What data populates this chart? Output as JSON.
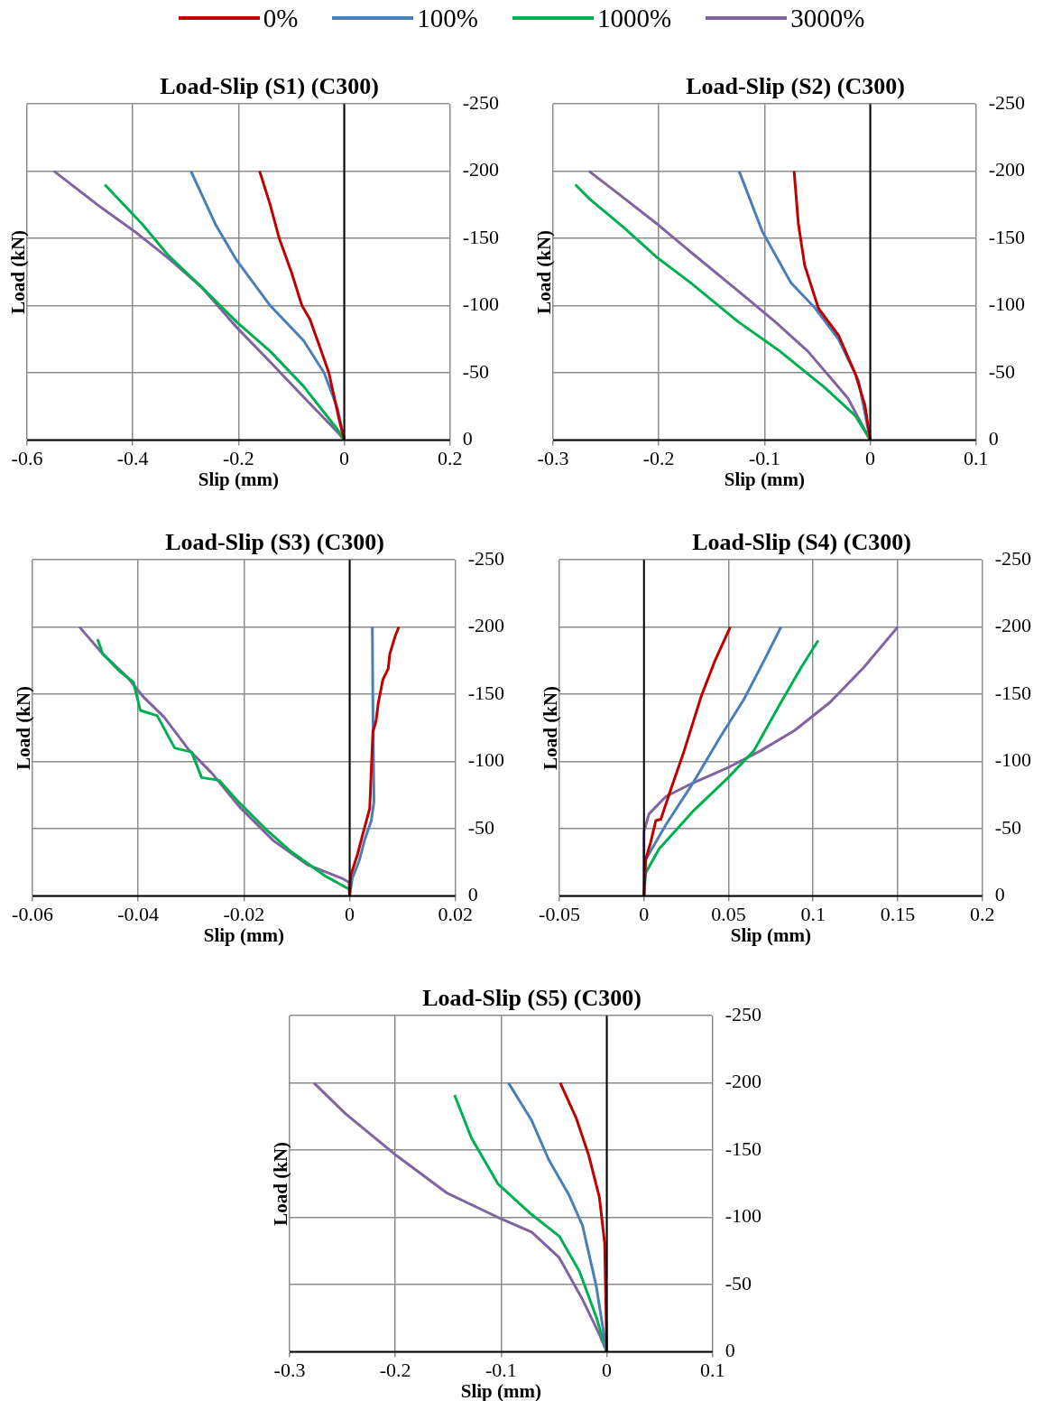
{
  "chart_data": [
    {
      "type": "line",
      "title": "Load-Slip (S1) (C300)",
      "xlabel": "Slip (mm)",
      "ylabel": "Load (kN)",
      "xlim": [
        -0.6,
        0.2
      ],
      "xticks": [
        -0.6,
        -0.4,
        -0.2,
        0,
        0.2
      ],
      "ylim": [
        0,
        -250
      ],
      "yticks": [
        0,
        -50,
        -100,
        -150,
        -200,
        -250
      ],
      "grid": true,
      "legend": "top",
      "marker": "none",
      "series": [
        {
          "name": "0%",
          "color": "#c00000",
          "x": [
            0,
            -0.01,
            -0.029,
            -0.045,
            -0.065,
            -0.08,
            -0.1,
            -0.123,
            -0.14,
            -0.16
          ],
          "values": [
            0,
            -16,
            -50,
            -68,
            -90,
            -100,
            -125,
            -150,
            -175,
            -200
          ]
        },
        {
          "name": "100%",
          "color": "#4a7ebb",
          "x": [
            0,
            -0.013,
            -0.038,
            -0.077,
            -0.14,
            -0.204,
            -0.243,
            -0.29
          ],
          "values": [
            0,
            -24,
            -50,
            -74,
            -100,
            -134,
            -160,
            -200
          ]
        },
        {
          "name": "1000%",
          "color": "#00b050",
          "x": [
            0,
            -0.013,
            -0.077,
            -0.14,
            -0.204,
            -0.268,
            -0.332,
            -0.383,
            -0.453
          ],
          "values": [
            0,
            -8,
            -40,
            -66,
            -88,
            -113,
            -137,
            -161,
            -190
          ]
        },
        {
          "name": "3000%",
          "color": "#8064a2",
          "x": [
            0,
            -0.013,
            -0.077,
            -0.14,
            -0.204,
            -0.268,
            -0.332,
            -0.396,
            -0.46,
            -0.549
          ],
          "values": [
            0,
            -6,
            -32,
            -58,
            -84,
            -113,
            -135,
            -155,
            -173,
            -200
          ]
        }
      ]
    },
    {
      "type": "line",
      "title": "Load-Slip (S2) (C300)",
      "xlabel": "Slip (mm)",
      "ylabel": "Load (kN)",
      "xlim": [
        -0.3,
        0.1
      ],
      "xticks": [
        -0.3,
        -0.2,
        -0.1,
        0,
        0.1
      ],
      "ylim": [
        0,
        -250
      ],
      "yticks": [
        0,
        -50,
        -100,
        -150,
        -200,
        -250
      ],
      "grid": true,
      "marker": "none",
      "series": [
        {
          "color": "#c00000",
          "x": [
            0,
            -0.005,
            -0.014,
            -0.03,
            -0.049,
            -0.062,
            -0.068,
            -0.072
          ],
          "values": [
            0,
            -26,
            -49,
            -78,
            -98,
            -130,
            -161,
            -200
          ]
        },
        {
          "color": "#4a7ebb",
          "x": [
            0,
            -0.011,
            -0.03,
            -0.052,
            -0.075,
            -0.102,
            -0.124
          ],
          "values": [
            0,
            -44,
            -75,
            -98,
            -117,
            -155,
            -200
          ]
        },
        {
          "color": "#00b050",
          "x": [
            0,
            -0.014,
            -0.043,
            -0.087,
            -0.125,
            -0.17,
            -0.202,
            -0.233,
            -0.265,
            -0.279
          ],
          "values": [
            0,
            -18,
            -39,
            -67,
            -88,
            -117,
            -136,
            -158,
            -179,
            -190
          ]
        },
        {
          "color": "#8064a2",
          "x": [
            0,
            -0.011,
            -0.021,
            -0.059,
            -0.09,
            -0.122,
            -0.17,
            -0.202,
            -0.233,
            -0.266
          ],
          "values": [
            0,
            -16,
            -31,
            -66,
            -88,
            -109,
            -140,
            -161,
            -180,
            -200
          ]
        }
      ]
    },
    {
      "type": "line",
      "title": "Load-Slip (S3) (C300)",
      "xlabel": "Slip (mm)",
      "ylabel": "Load (kN)",
      "xlim": [
        -0.06,
        0.02
      ],
      "xticks": [
        -0.06,
        -0.04,
        -0.02,
        0,
        0.02
      ],
      "ylim": [
        0,
        -250
      ],
      "yticks": [
        0,
        -50,
        -100,
        -150,
        -200,
        -250
      ],
      "grid": true,
      "marker": "none",
      "series": [
        {
          "color": "#c00000",
          "x": [
            0,
            0.0002,
            0.0015,
            0.0025,
            0.0038,
            0.0044,
            0.005,
            0.0054,
            0.0063,
            0.0073,
            0.0076,
            0.0086,
            0.0093
          ],
          "values": [
            0,
            -15,
            -31,
            -46,
            -65,
            -122,
            -130,
            -143,
            -161,
            -169,
            -180,
            -193,
            -200
          ]
        },
        {
          "color": "#4a7ebb",
          "x": [
            0,
            0.0005,
            0.0018,
            0.0028,
            0.0041,
            0.0046,
            0.0044,
            0.0043
          ],
          "values": [
            0,
            -13,
            -26,
            -41,
            -56,
            -70,
            -143,
            -200
          ]
        },
        {
          "color": "#00b050",
          "x": [
            0,
            -0.0001,
            -0.0047,
            -0.0111,
            -0.0157,
            -0.0208,
            -0.0247,
            -0.028,
            -0.0299,
            -0.0331,
            -0.0364,
            -0.0396,
            -0.0409,
            -0.0435,
            -0.0467,
            -0.0477
          ],
          "values": [
            0,
            -5,
            -15,
            -33,
            -49,
            -69,
            -86,
            -88,
            -107,
            -110,
            -134,
            -138,
            -159,
            -167,
            -180,
            -191
          ]
        },
        {
          "color": "#8064a2",
          "x": [
            0,
            -0.0001,
            -0.0014,
            -0.0079,
            -0.0144,
            -0.0208,
            -0.026,
            -0.0305,
            -0.0351,
            -0.039,
            -0.0421,
            -0.0467,
            -0.0511
          ],
          "values": [
            0,
            -10,
            -13,
            -23,
            -41,
            -66,
            -91,
            -109,
            -133,
            -148,
            -163,
            -180,
            -200
          ]
        }
      ]
    },
    {
      "type": "line",
      "title": "Load-Slip (S4) (C300)",
      "xlabel": "Slip (mm)",
      "ylabel": "Load (kN)",
      "xlim": [
        -0.05,
        0.2
      ],
      "xticks": [
        -0.05,
        0,
        0.05,
        0.1,
        0.15,
        0.2
      ],
      "ylim": [
        0,
        -250
      ],
      "yticks": [
        0,
        -50,
        -100,
        -150,
        -200,
        -250
      ],
      "grid": true,
      "marker": "none",
      "series": [
        {
          "color": "#c00000",
          "x": [
            0,
            0.001,
            0.004,
            0.007,
            0.01,
            0.015,
            0.023,
            0.034,
            0.042,
            0.051
          ],
          "values": [
            0,
            -27,
            -40,
            -56,
            -57,
            -76,
            -105,
            -149,
            -175,
            -200
          ]
        },
        {
          "color": "#4a7ebb",
          "x": [
            0,
            0.001,
            0.013,
            0.029,
            0.045,
            0.059,
            0.071,
            0.081
          ],
          "values": [
            0,
            -27,
            -53,
            -84,
            -118,
            -146,
            -175,
            -200
          ]
        },
        {
          "color": "#00b050",
          "x": [
            0,
            0.001,
            0.009,
            0.029,
            0.049,
            0.065,
            0.081,
            0.093,
            0.103
          ],
          "values": [
            0,
            -17,
            -35,
            -63,
            -87,
            -108,
            -144,
            -170,
            -190
          ]
        },
        {
          "color": "#8064a2",
          "x": [
            0,
            0,
            0.003,
            0.013,
            0.029,
            0.049,
            0.069,
            0.089,
            0.11,
            0.13,
            0.15
          ],
          "values": [
            0,
            -48,
            -61,
            -74,
            -84,
            -95,
            -108,
            -123,
            -144,
            -170,
            -200
          ]
        }
      ]
    },
    {
      "type": "line",
      "title": "Load-Slip (S5) (C300)",
      "xlabel": "Slip (mm)",
      "ylabel": "Load (kN)",
      "xlim": [
        -0.3,
        0.1
      ],
      "xticks": [
        -0.3,
        -0.2,
        -0.1,
        0,
        0.1
      ],
      "ylim": [
        0,
        -250
      ],
      "yticks": [
        0,
        -50,
        -100,
        -150,
        -200,
        -250
      ],
      "grid": true,
      "marker": "none",
      "series": [
        {
          "color": "#c00000",
          "x": [
            0,
            -0.001,
            -0.002,
            -0.007,
            -0.017,
            -0.029,
            -0.044
          ],
          "values": [
            0,
            -42,
            -81,
            -115,
            -146,
            -174,
            -200
          ]
        },
        {
          "color": "#4a7ebb",
          "x": [
            0,
            -0.01,
            -0.023,
            -0.036,
            -0.055,
            -0.071,
            -0.093
          ],
          "values": [
            0,
            -49,
            -94,
            -117,
            -143,
            -172,
            -200
          ]
        },
        {
          "color": "#00b050",
          "x": [
            0,
            -0.01,
            -0.026,
            -0.045,
            -0.071,
            -0.103,
            -0.128,
            -0.144
          ],
          "values": [
            0,
            -26,
            -60,
            -86,
            -102,
            -125,
            -159,
            -191
          ]
        },
        {
          "color": "#8064a2",
          "x": [
            0,
            -0.007,
            -0.023,
            -0.045,
            -0.071,
            -0.103,
            -0.151,
            -0.199,
            -0.247,
            -0.277
          ],
          "values": [
            0,
            -13,
            -39,
            -70,
            -89,
            -100,
            -118,
            -146,
            -177,
            -200
          ]
        }
      ]
    }
  ]
}
